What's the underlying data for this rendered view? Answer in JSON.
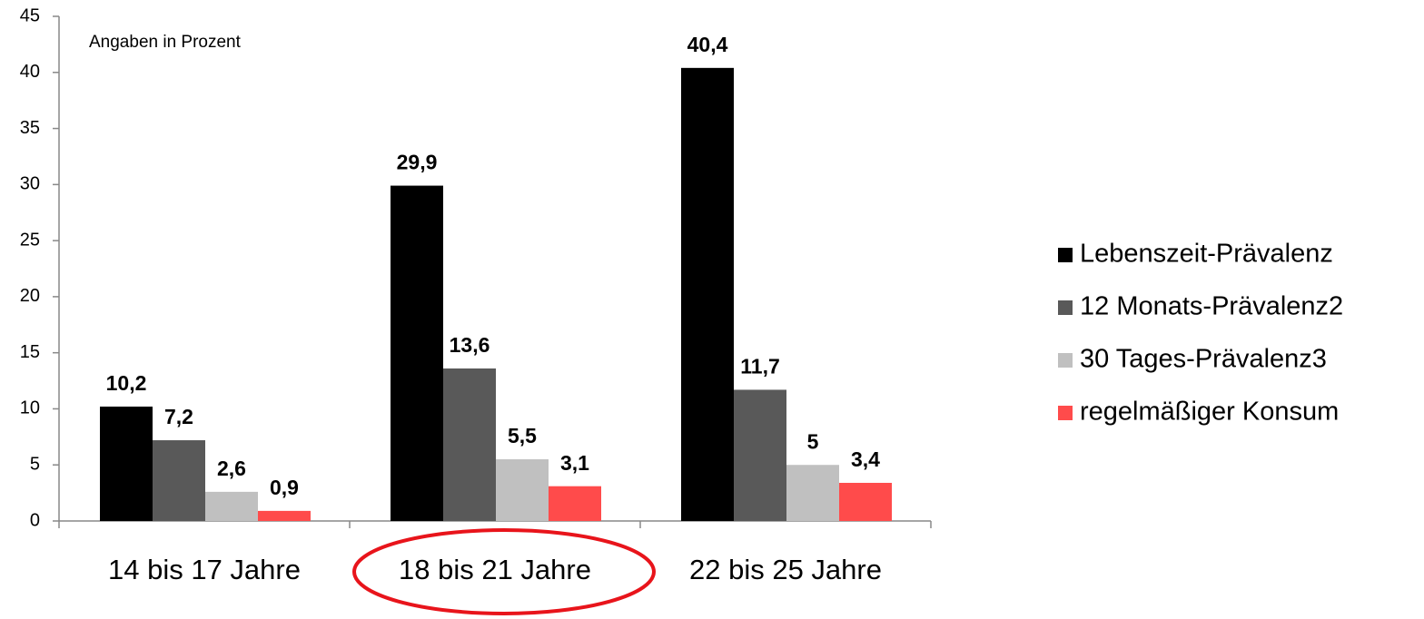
{
  "chart_data": {
    "type": "bar",
    "annotation": "Angaben in Prozent",
    "categories": [
      "14 bis 17 Jahre",
      "18 bis 21 Jahre",
      "22 bis 25 Jahre"
    ],
    "series": [
      {
        "name": "Lebenszeit-Prävalenz",
        "color": "#000000",
        "values": [
          10.2,
          29.9,
          40.4
        ],
        "value_labels": [
          "10,2",
          "29,9",
          "40,4"
        ]
      },
      {
        "name": "12 Monats-Prävalenz2",
        "color": "#595959",
        "values": [
          7.2,
          13.6,
          11.7
        ],
        "value_labels": [
          "7,2",
          "13,6",
          "11,7"
        ]
      },
      {
        "name": "30 Tages-Prävalenz3",
        "color": "#c0c0c0",
        "values": [
          2.6,
          5.5,
          5
        ],
        "value_labels": [
          "2,6",
          "5,5",
          "5"
        ]
      },
      {
        "name": "regelmäßiger Konsum",
        "color": "#ff4b4b",
        "values": [
          0.9,
          3.1,
          3.4
        ],
        "value_labels": [
          "0,9",
          "3,1",
          "3,4"
        ]
      }
    ],
    "ylim": [
      0,
      45
    ],
    "yticks": [
      0,
      5,
      10,
      15,
      20,
      25,
      30,
      35,
      40,
      45
    ],
    "legend": "right"
  }
}
